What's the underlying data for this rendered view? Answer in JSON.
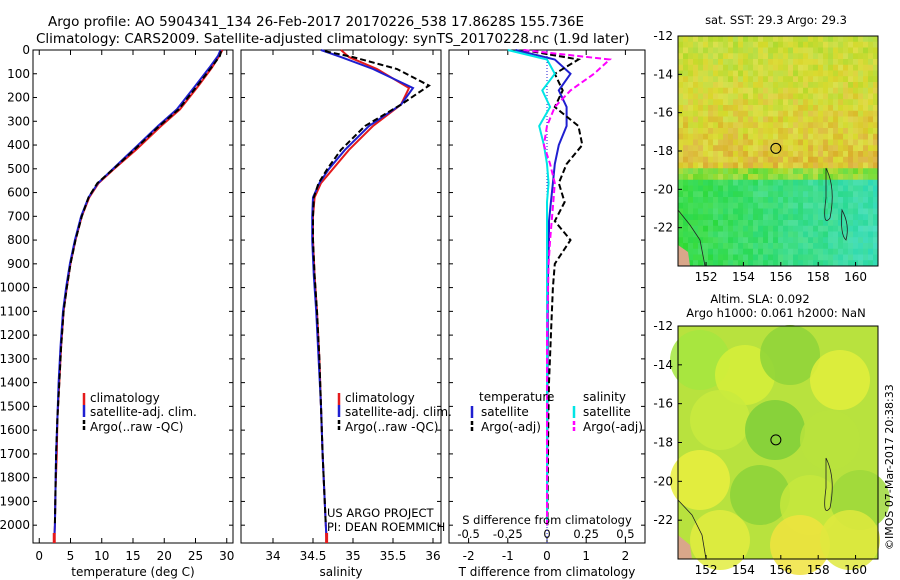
{
  "header": {
    "title_line1": "Argo profile: AO 5904341_134 26-Feb-2017 20170226_538 17.8628S 155.736E",
    "title_line2": "Climatology: CARS2009. Satellite-adjusted climatology: synTS_20170228.nc (1.9d later)"
  },
  "depth_axis": {
    "ticks": [
      "0",
      "100",
      "200",
      "300",
      "400",
      "500",
      "600",
      "700",
      "800",
      "900",
      "1000",
      "1100",
      "1200",
      "1300",
      "1400",
      "1500",
      "1600",
      "1700",
      "1800",
      "1900",
      "2000"
    ],
    "range": [
      0,
      2075
    ]
  },
  "colors": {
    "climatology": "#e41a1c",
    "satellite": "#1f1fd0",
    "argo": "#000000",
    "salinity_sat": "#00e5e5",
    "salinity_argo": "#ff00ff"
  },
  "chart_data": [
    {
      "type": "line",
      "id": "temperature",
      "xlabel": "temperature (deg C)",
      "xlim": [
        -1,
        31
      ],
      "xticks": [
        "0",
        "5",
        "10",
        "15",
        "20",
        "25",
        "30"
      ],
      "legend": [
        "climatology",
        "satellite-adj. clim.",
        "Argo(..raw -QC)"
      ],
      "series": [
        {
          "name": "climatology",
          "color": "#e41a1c",
          "x": [
            29.3,
            28.8,
            27.6,
            25.5,
            22.5,
            19.5,
            15.5,
            12.0,
            9.5,
            8.0,
            6.8,
            5.8,
            5.0,
            4.4,
            3.9,
            3.5,
            3.2,
            2.9,
            2.8,
            2.6,
            2.5,
            2.4
          ],
          "depth": [
            0,
            25,
            75,
            150,
            250,
            320,
            420,
            500,
            560,
            620,
            700,
            800,
            900,
            1000,
            1100,
            1250,
            1400,
            1550,
            1700,
            1850,
            2000,
            2060
          ]
        },
        {
          "name": "satellite-adj. clim.",
          "color": "#1f1fd0",
          "x": [
            29.0,
            28.6,
            27.2,
            25.0,
            22.0,
            19.0,
            15.0,
            11.8,
            9.4,
            7.9,
            6.7,
            5.7,
            4.9,
            4.3,
            3.8,
            3.4,
            3.1,
            2.9,
            2.7,
            2.6,
            2.5,
            2.4
          ],
          "depth": [
            0,
            25,
            75,
            150,
            250,
            320,
            420,
            500,
            560,
            620,
            700,
            800,
            900,
            1000,
            1100,
            1250,
            1400,
            1550,
            1700,
            1850,
            2000,
            2060
          ]
        },
        {
          "name": "Argo(..raw -QC)",
          "color": "#000000",
          "dashed": true,
          "x": [
            29.1,
            28.9,
            27.5,
            25.3,
            22.3,
            19.2,
            15.2,
            11.9,
            9.3,
            7.9,
            6.8,
            5.8,
            5.0,
            4.4,
            3.9,
            3.5,
            3.2,
            2.9,
            2.7,
            2.6,
            2.5
          ],
          "depth": [
            5,
            25,
            75,
            150,
            250,
            320,
            420,
            500,
            560,
            620,
            700,
            800,
            900,
            1000,
            1100,
            1250,
            1400,
            1550,
            1700,
            1850,
            2000
          ]
        }
      ]
    },
    {
      "type": "line",
      "id": "salinity",
      "xlabel": "salinity",
      "xlim": [
        33.6,
        36.1
      ],
      "xticks": [
        "34",
        "34.5",
        "35",
        "35.5",
        "36"
      ],
      "legend": [
        "climatology",
        "satellite-adj. clim.",
        "Argo(..raw -QC)"
      ],
      "annotation": [
        "US ARGO PROJECT",
        "PI: DEAN ROEMMICH"
      ],
      "series": [
        {
          "name": "climatology",
          "color": "#e41a1c",
          "x": [
            34.85,
            34.95,
            35.3,
            35.7,
            35.6,
            35.25,
            34.95,
            34.75,
            34.6,
            34.52,
            34.5,
            34.5,
            34.52,
            34.55,
            34.58,
            34.6,
            34.62,
            34.64,
            34.66,
            34.67
          ],
          "depth": [
            0,
            30,
            80,
            160,
            230,
            320,
            420,
            500,
            560,
            620,
            700,
            800,
            950,
            1100,
            1300,
            1500,
            1700,
            1850,
            2000,
            2060
          ]
        },
        {
          "name": "satellite-adj. clim.",
          "color": "#1f1fd0",
          "x": [
            34.6,
            34.85,
            35.25,
            35.75,
            35.6,
            35.2,
            34.9,
            34.7,
            34.58,
            34.5,
            34.49,
            34.49,
            34.51,
            34.54,
            34.57,
            34.6,
            34.62,
            34.64,
            34.66,
            34.67
          ],
          "depth": [
            0,
            30,
            80,
            160,
            230,
            320,
            420,
            500,
            560,
            620,
            700,
            800,
            950,
            1100,
            1300,
            1500,
            1700,
            1850,
            2000,
            2060
          ]
        },
        {
          "name": "Argo(..raw -QC)",
          "color": "#000000",
          "dashed": true,
          "x": [
            34.65,
            35.0,
            35.55,
            35.95,
            35.6,
            35.15,
            34.85,
            34.68,
            34.57,
            34.51,
            34.5,
            34.5,
            34.52,
            34.55,
            34.58,
            34.6,
            34.62,
            34.64,
            34.66
          ],
          "depth": [
            5,
            30,
            80,
            150,
            230,
            320,
            420,
            500,
            560,
            620,
            700,
            800,
            950,
            1100,
            1300,
            1500,
            1700,
            1850,
            2000
          ]
        }
      ]
    },
    {
      "type": "line",
      "id": "difference",
      "xlabel": "T difference from climatology",
      "xlim": [
        -2.5,
        2.5
      ],
      "xticks": [
        "-2",
        "-1",
        "0",
        "1",
        "2"
      ],
      "s_label": "S difference from climatology",
      "s_ticks": [
        "-0.5",
        "-0.25",
        "0",
        "0.25",
        "0.5"
      ],
      "legend_temperature": {
        "title": "temperature",
        "items": [
          "satellite",
          "Argo(-adj)"
        ]
      },
      "legend_salinity": {
        "title": "salinity",
        "items": [
          "satellite",
          "Argo(-adj)"
        ]
      },
      "series": [
        {
          "name": "T satellite",
          "color": "#1f1fd0",
          "x": [
            -0.8,
            0.2,
            0.6,
            0.3,
            0.5,
            0.5,
            0.3,
            0.2,
            0.15,
            0.1,
            0.05,
            0.05,
            0.03,
            0.02,
            0.02,
            0.01,
            0.01,
            0.0
          ],
          "depth": [
            0,
            40,
            100,
            170,
            240,
            320,
            400,
            480,
            560,
            640,
            720,
            800,
            900,
            1000,
            1200,
            1400,
            1600,
            2000
          ]
        },
        {
          "name": "T Argo(-adj)",
          "color": "#000000",
          "dashed": true,
          "x": [
            -0.6,
            0.8,
            0.2,
            0.4,
            0.2,
            0.8,
            0.9,
            0.5,
            0.3,
            0.45,
            0.2,
            0.6,
            0.2,
            0.15,
            0.1,
            0.05,
            0.03,
            0.01
          ],
          "depth": [
            0,
            40,
            100,
            170,
            240,
            320,
            400,
            480,
            560,
            640,
            720,
            800,
            900,
            1000,
            1200,
            1400,
            1600,
            2000
          ]
        },
        {
          "name": "S satellite",
          "color": "#00e5e5",
          "x": [
            -0.25,
            0.0,
            0.05,
            -0.03,
            0.02,
            -0.05,
            -0.02,
            0.0,
            0.01,
            0.0,
            0.0,
            0.0,
            0.0,
            0.0,
            0.0,
            0.0
          ],
          "depth": [
            0,
            40,
            100,
            170,
            240,
            320,
            400,
            480,
            560,
            640,
            720,
            800,
            900,
            1200,
            1600,
            2000
          ]
        },
        {
          "name": "S Argo(-adj)",
          "color": "#ff00ff",
          "dashed": true,
          "x": [
            -0.15,
            0.4,
            0.3,
            0.15,
            0.05,
            0.0,
            -0.02,
            0.02,
            0.05,
            0.04,
            0.03,
            0.02,
            0.01,
            0.0,
            0.0,
            0.0
          ],
          "depth": [
            0,
            40,
            100,
            170,
            240,
            320,
            400,
            480,
            560,
            640,
            720,
            800,
            900,
            1200,
            1600,
            2000
          ]
        }
      ]
    },
    {
      "type": "heatmap",
      "id": "sst_map",
      "title": "sat. SST: 29.3 Argo: 29.3",
      "xticks": [
        "152",
        "154",
        "156",
        "158",
        "160"
      ],
      "yticks": [
        "-12",
        "-14",
        "-16",
        "-18",
        "-20",
        "-22"
      ],
      "marker_lon": 155.736,
      "marker_lat": -17.8628
    },
    {
      "type": "heatmap",
      "id": "sla_map",
      "title_line1": "Altim. SLA: 0.092",
      "title_line2": "Argo h1000: 0.061 h2000: NaN",
      "xticks": [
        "152",
        "154",
        "156",
        "158",
        "160"
      ],
      "yticks": [
        "-12",
        "-14",
        "-16",
        "-18",
        "-20",
        "-22"
      ],
      "marker_lon": 155.736,
      "marker_lat": -17.8628
    }
  ],
  "credit": "©IMOS 07-Mar-2017 20:38:33"
}
